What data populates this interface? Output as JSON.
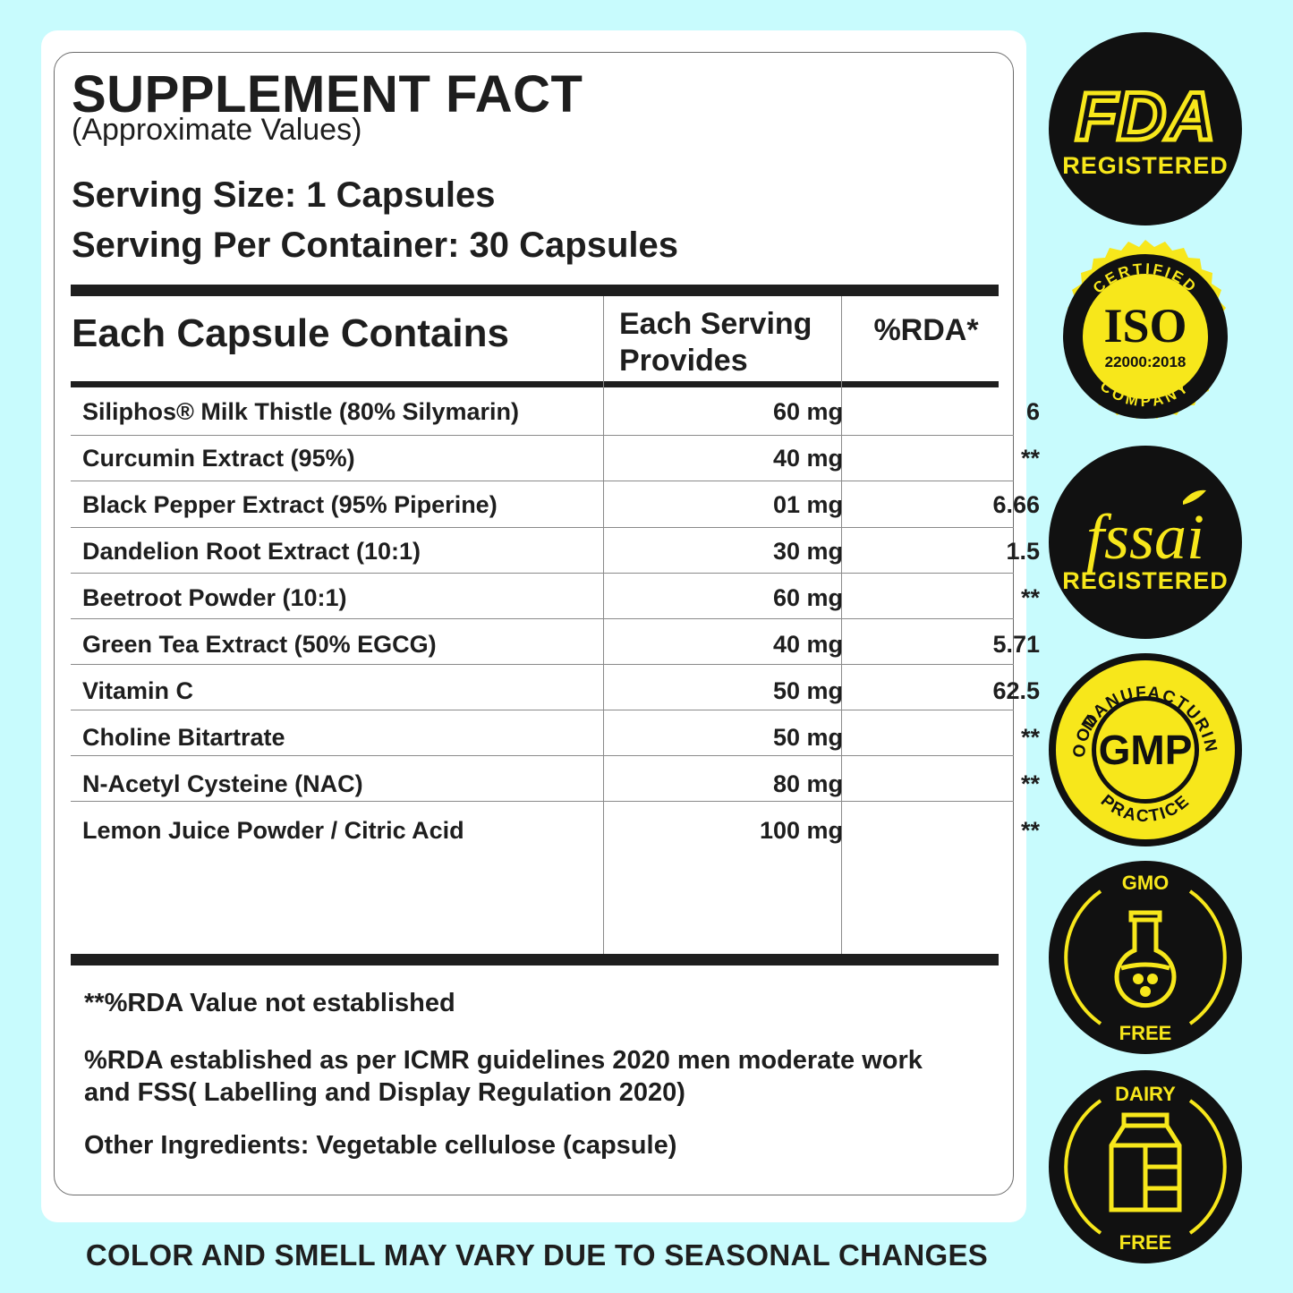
{
  "panel": {
    "title": "SUPPLEMENT FACT",
    "subtitle": "(Approximate Values)",
    "serving_size": "Serving Size: 1 Capsules",
    "serving_per_container": "Serving Per Container: 30 Capsules"
  },
  "table": {
    "headers": {
      "ingredient": "Each Capsule Contains",
      "amount_line1": "Each Serving",
      "amount_line2": "Provides",
      "rda": "%RDA*"
    },
    "rows": [
      {
        "name": "Siliphos® Milk Thistle (80% Silymarin)",
        "amount": "60 mg",
        "rda": "6"
      },
      {
        "name": "Curcumin Extract (95%)",
        "amount": "40 mg",
        "rda": "**"
      },
      {
        "name": "Black Pepper Extract (95% Piperine)",
        "amount": "01 mg",
        "rda": "6.66"
      },
      {
        "name": "Dandelion Root Extract (10:1)",
        "amount": "30 mg",
        "rda": "1.5"
      },
      {
        "name": "Beetroot Powder (10:1)",
        "amount": "60 mg",
        "rda": "**"
      },
      {
        "name": "Green Tea Extract (50% EGCG)",
        "amount": "40 mg",
        "rda": "5.71"
      },
      {
        "name": "Vitamin C",
        "amount": "50 mg",
        "rda": "62.5"
      },
      {
        "name": "Choline Bitartrate",
        "amount": "50 mg",
        "rda": "**"
      },
      {
        "name": "N-Acetyl Cysteine (NAC)",
        "amount": "80 mg",
        "rda": "**"
      },
      {
        "name": "Lemon Juice Powder / Citric Acid",
        "amount": "100 mg",
        "rda": "**"
      }
    ]
  },
  "notes": {
    "rda_not_established": "**%RDA Value not established",
    "rda_basis_line1": "%RDA established as per ICMR guidelines 2020 men moderate work",
    "rda_basis_line2": "and FSS( Labelling and Display Regulation 2020)",
    "other_ingredients": "Other Ingredients: Vegetable cellulose (capsule)"
  },
  "disclaimer": "COLOR AND SMELL MAY VARY DUE TO SEASONAL CHANGES",
  "badges": [
    {
      "icon": "fda-logo-icon",
      "top": "FDA",
      "bottom": "REGISTERED"
    },
    {
      "icon": "iso-seal-icon",
      "top": "CERTIFIED",
      "main": "ISO",
      "code": "22000:2018",
      "bottom": "COMPANY"
    },
    {
      "icon": "fssai-logo-icon",
      "top": "fssai",
      "bottom": "REGISTERED"
    },
    {
      "icon": "gmp-seal-icon",
      "top": "MANUFACTURING",
      "main": "GMP",
      "left": "GOOD",
      "bottom": "PRACTICE"
    },
    {
      "icon": "flask-icon",
      "top": "GMO",
      "bottom": "FREE"
    },
    {
      "icon": "milk-carton-icon",
      "top": "DAIRY",
      "bottom": "FREE"
    }
  ],
  "colors": {
    "background": "#c8fbfd",
    "badge_dark": "#111111",
    "badge_yellow": "#f7e71b",
    "text": "#1e1e1e"
  }
}
